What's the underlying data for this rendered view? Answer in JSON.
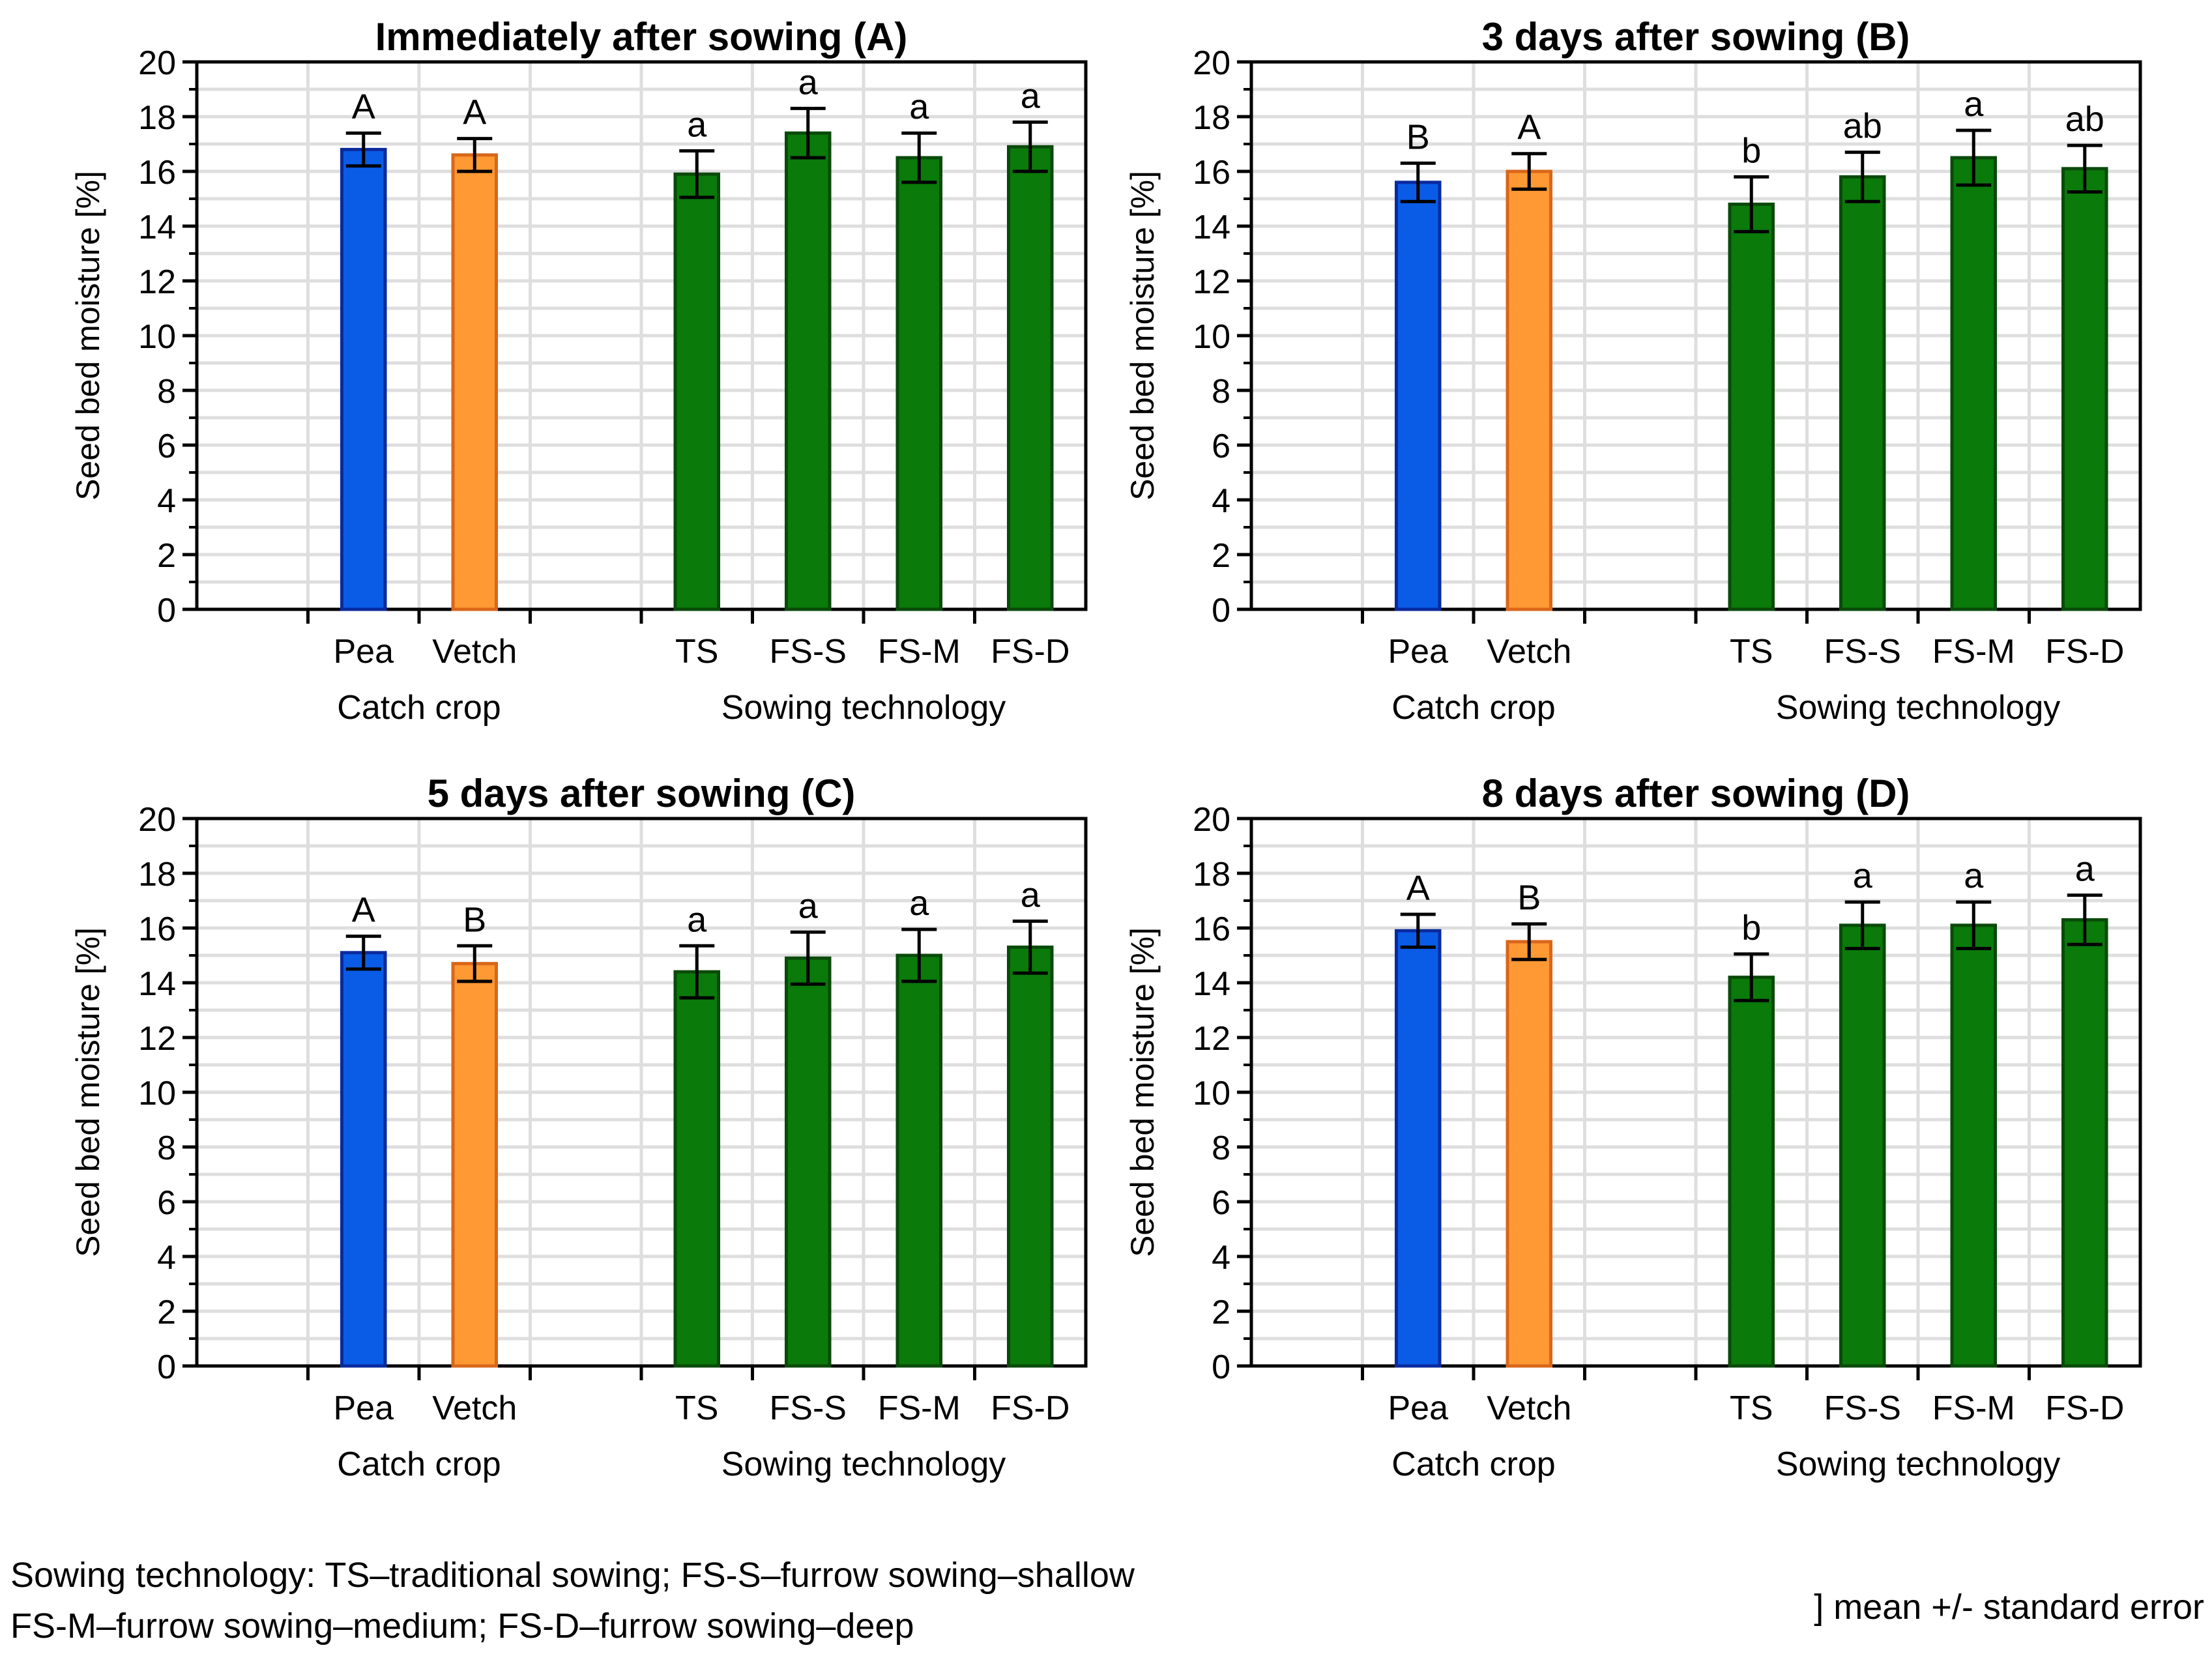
{
  "chart_data": [
    {
      "type": "bar",
      "title": "Immediately after sowing (A)",
      "ylabel": "Seed bed moisture [%]",
      "ylim": [
        0,
        20
      ],
      "yticks": [
        0,
        2,
        4,
        6,
        8,
        10,
        12,
        14,
        16,
        18,
        20
      ],
      "grid": true,
      "group_labels": [
        "Catch crop",
        "Sowing technology"
      ],
      "categories": [
        "Pea",
        "Vetch",
        "TS",
        "FS-S",
        "FS-M",
        "FS-D"
      ],
      "groups": [
        0,
        0,
        1,
        1,
        1,
        1
      ],
      "values": [
        16.8,
        16.6,
        15.9,
        17.4,
        16.5,
        16.9
      ],
      "errors": [
        0.6,
        0.6,
        0.85,
        0.9,
        0.9,
        0.9
      ],
      "letters": [
        "A",
        "A",
        "a",
        "a",
        "a",
        "a"
      ],
      "colors": [
        "#0a5ce6",
        "#ff9933",
        "#0a7a0a",
        "#0a7a0a",
        "#0a7a0a",
        "#0a7a0a"
      ],
      "edge_colors": [
        "#0a2a9e",
        "#d9661a",
        "#0a4a0a",
        "#0a4a0a",
        "#0a4a0a",
        "#0a4a0a"
      ]
    },
    {
      "type": "bar",
      "title": "3 days after sowing (B)",
      "ylabel": "Seed bed moisture [%]",
      "ylim": [
        0,
        20
      ],
      "yticks": [
        0,
        2,
        4,
        6,
        8,
        10,
        12,
        14,
        16,
        18,
        20
      ],
      "grid": true,
      "group_labels": [
        "Catch crop",
        "Sowing technology"
      ],
      "categories": [
        "Pea",
        "Vetch",
        "TS",
        "FS-S",
        "FS-M",
        "FS-D"
      ],
      "groups": [
        0,
        0,
        1,
        1,
        1,
        1
      ],
      "values": [
        15.6,
        16.0,
        14.8,
        15.8,
        16.5,
        16.1
      ],
      "errors": [
        0.7,
        0.65,
        1.0,
        0.9,
        1.0,
        0.85
      ],
      "letters": [
        "B",
        "A",
        "b",
        "ab",
        "a",
        "ab"
      ],
      "colors": [
        "#0a5ce6",
        "#ff9933",
        "#0a7a0a",
        "#0a7a0a",
        "#0a7a0a",
        "#0a7a0a"
      ],
      "edge_colors": [
        "#0a2a9e",
        "#d9661a",
        "#0a4a0a",
        "#0a4a0a",
        "#0a4a0a",
        "#0a4a0a"
      ]
    },
    {
      "type": "bar",
      "title": "5 days after sowing (C)",
      "ylabel": "Seed bed moisture [%]",
      "ylim": [
        0,
        20
      ],
      "yticks": [
        0,
        2,
        4,
        6,
        8,
        10,
        12,
        14,
        16,
        18,
        20
      ],
      "grid": true,
      "group_labels": [
        "Catch crop",
        "Sowing technology"
      ],
      "categories": [
        "Pea",
        "Vetch",
        "TS",
        "FS-S",
        "FS-M",
        "FS-D"
      ],
      "groups": [
        0,
        0,
        1,
        1,
        1,
        1
      ],
      "values": [
        15.1,
        14.7,
        14.4,
        14.9,
        15.0,
        15.3
      ],
      "errors": [
        0.6,
        0.65,
        0.95,
        0.95,
        0.95,
        0.95
      ],
      "letters": [
        "A",
        "B",
        "a",
        "a",
        "a",
        "a"
      ],
      "colors": [
        "#0a5ce6",
        "#ff9933",
        "#0a7a0a",
        "#0a7a0a",
        "#0a7a0a",
        "#0a7a0a"
      ],
      "edge_colors": [
        "#0a2a9e",
        "#d9661a",
        "#0a4a0a",
        "#0a4a0a",
        "#0a4a0a",
        "#0a4a0a"
      ]
    },
    {
      "type": "bar",
      "title": "8 days after sowing (D)",
      "ylabel": "Seed bed moisture [%]",
      "ylim": [
        0,
        20
      ],
      "yticks": [
        0,
        2,
        4,
        6,
        8,
        10,
        12,
        14,
        16,
        18,
        20
      ],
      "grid": true,
      "group_labels": [
        "Catch crop",
        "Sowing technology"
      ],
      "categories": [
        "Pea",
        "Vetch",
        "TS",
        "FS-S",
        "FS-M",
        "FS-D"
      ],
      "groups": [
        0,
        0,
        1,
        1,
        1,
        1
      ],
      "values": [
        15.9,
        15.5,
        14.2,
        16.1,
        16.1,
        16.3
      ],
      "errors": [
        0.6,
        0.65,
        0.85,
        0.85,
        0.85,
        0.9
      ],
      "letters": [
        "A",
        "B",
        "b",
        "a",
        "a",
        "a"
      ],
      "colors": [
        "#0a5ce6",
        "#ff9933",
        "#0a7a0a",
        "#0a7a0a",
        "#0a7a0a",
        "#0a7a0a"
      ],
      "edge_colors": [
        "#0a2a9e",
        "#d9661a",
        "#0a4a0a",
        "#0a4a0a",
        "#0a4a0a",
        "#0a4a0a"
      ]
    }
  ],
  "footnote": {
    "line1": "Sowing technology: TS–traditional sowing; FS-S–furrow sowing–shallow",
    "line2": "FS-M–furrow sowing–medium; FS-D–furrow sowing–deep"
  },
  "legend_note": "] mean +/- standard error"
}
